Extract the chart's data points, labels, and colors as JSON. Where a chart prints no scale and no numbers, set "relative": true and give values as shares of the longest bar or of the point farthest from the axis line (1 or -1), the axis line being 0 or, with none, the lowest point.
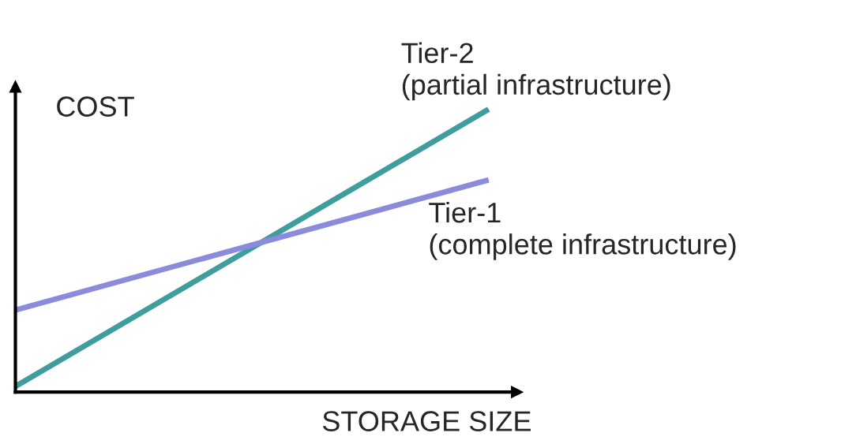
{
  "chart_data": {
    "type": "line",
    "xlabel": "STORAGE SIZE",
    "ylabel": "COST",
    "relative": true,
    "categories": [
      null,
      null
    ],
    "legend": false,
    "marker": "none",
    "line_style": "solid",
    "series": [
      {
        "name": "Tier-2\n(partial infrastructure)",
        "color": "#3f9d9d",
        "values": [
          0.02,
          1
        ]
      },
      {
        "name": "Tier-1\n(complete infrastructure)",
        "color": "#8b8bdb",
        "values": [
          0.29,
          0.75
        ]
      }
    ]
  }
}
